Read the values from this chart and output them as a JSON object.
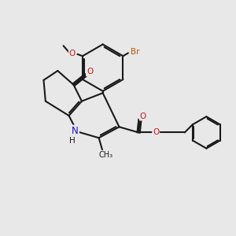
{
  "bg": "#e8e8e8",
  "bond_color": "#1a1a1a",
  "bond_lw": 1.5,
  "N_color": "#1414cc",
  "O_color": "#cc1414",
  "Br_color": "#bb5500",
  "C_color": "#1a1a1a",
  "dpi": 100,
  "figsize": [
    3.0,
    3.0
  ],
  "xlim": [
    0,
    10
  ],
  "ylim": [
    0,
    10
  ]
}
